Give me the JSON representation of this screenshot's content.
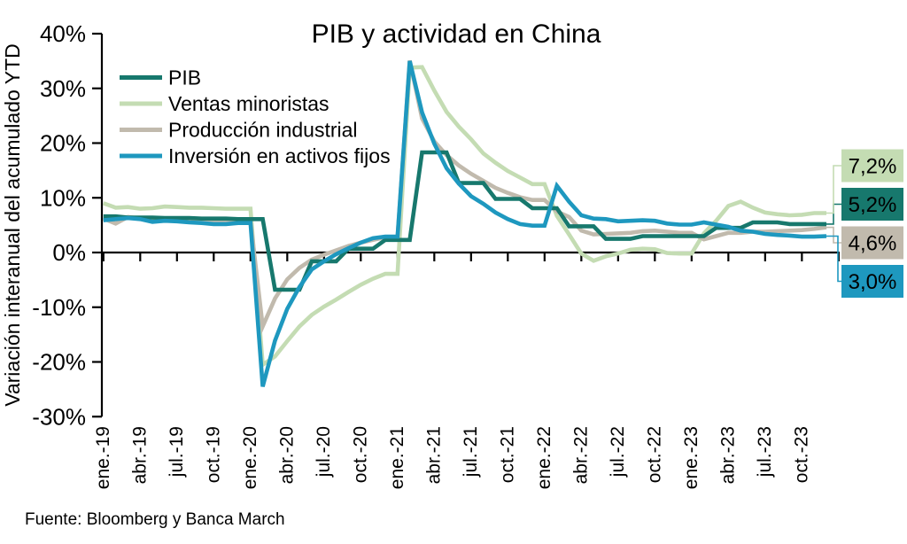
{
  "source": "Fuente: Bloomberg y Banca March",
  "chart_data": {
    "type": "line",
    "title": "PIB y actividad en China",
    "ylabel": "Variación interanual del acumulado YTD",
    "ylim": [
      -30,
      40
    ],
    "yticks": {
      "labels": [
        "40%",
        "30%",
        "20%",
        "10%",
        "0%",
        "-10%",
        "-20%",
        "-30%"
      ],
      "values": [
        40,
        30,
        20,
        10,
        0,
        -10,
        -20,
        -30
      ]
    },
    "x_frequency": "monthly",
    "categories": [
      "ene.-19",
      "feb.-19",
      "mar.-19",
      "abr.-19",
      "may.-19",
      "jun.-19",
      "jul.-19",
      "ago.-19",
      "sep.-19",
      "oct.-19",
      "nov.-19",
      "dic.-19",
      "ene.-20",
      "feb.-20",
      "mar.-20",
      "abr.-20",
      "may.-20",
      "jun.-20",
      "jul.-20",
      "ago.-20",
      "sep.-20",
      "oct.-20",
      "nov.-20",
      "dic.-20",
      "ene.-21",
      "feb.-21",
      "mar.-21",
      "abr.-21",
      "may.-21",
      "jun.-21",
      "jul.-21",
      "ago.-21",
      "sep.-21",
      "oct.-21",
      "nov.-21",
      "dic.-21",
      "ene.-22",
      "feb.-22",
      "mar.-22",
      "abr.-22",
      "may.-22",
      "jun.-22",
      "jul.-22",
      "ago.-22",
      "sep.-22",
      "oct.-22",
      "nov.-22",
      "dic.-22",
      "ene.-23",
      "feb.-23",
      "mar.-23",
      "abr.-23",
      "may.-23",
      "jun.-23",
      "jul.-23",
      "ago.-23",
      "sep.-23",
      "oct.-23",
      "nov.-23",
      "dic.-23"
    ],
    "xtick_labels": [
      "ene.-19",
      "abr.-19",
      "jul.-19",
      "oct.-19",
      "ene.-20",
      "abr.-20",
      "jul.-20",
      "oct.-20",
      "ene.-21",
      "abr.-21",
      "jul.-21",
      "oct.-21",
      "ene.-22",
      "abr.-22",
      "jul.-22",
      "oct.-22",
      "ene.-23",
      "abr.-23",
      "jul.-23",
      "oct.-23"
    ],
    "grid": false,
    "legend_position": "top-left",
    "series": [
      {
        "key": "pib",
        "name": "PIB",
        "color": "#17786d",
        "end_label": "5,2%",
        "end_label_text_color": "#ffffff",
        "values": [
          6.6,
          6.6,
          6.4,
          6.4,
          6.4,
          6.3,
          6.3,
          6.3,
          6.2,
          6.2,
          6.2,
          6.1,
          6.1,
          6.1,
          -6.8,
          -6.8,
          -6.8,
          -1.6,
          -1.6,
          -1.6,
          0.7,
          0.7,
          0.7,
          2.3,
          2.3,
          2.3,
          18.3,
          18.3,
          18.3,
          12.7,
          12.7,
          12.7,
          9.8,
          9.8,
          9.8,
          8.1,
          8.1,
          8.1,
          4.8,
          4.8,
          4.8,
          2.5,
          2.5,
          2.5,
          3.0,
          3.0,
          3.0,
          3.0,
          3.0,
          3.0,
          4.5,
          4.5,
          4.5,
          5.5,
          5.5,
          5.5,
          5.2,
          5.2,
          5.2,
          5.2
        ]
      },
      {
        "key": "ventas-minoristas",
        "name": "Ventas minoristas",
        "color": "#c4dcb3",
        "end_label": "7,2%",
        "end_label_text_color": "#1a1a1a",
        "values": [
          9.0,
          8.2,
          8.3,
          8.0,
          8.1,
          8.4,
          8.3,
          8.2,
          8.2,
          8.1,
          8.0,
          8.0,
          8.0,
          -20.5,
          -19.0,
          -16.2,
          -13.5,
          -11.4,
          -9.9,
          -8.6,
          -7.2,
          -5.9,
          -4.8,
          -3.9,
          -3.9,
          33.8,
          33.9,
          29.6,
          25.7,
          23.0,
          20.7,
          18.1,
          16.4,
          14.9,
          13.7,
          12.5,
          12.5,
          6.7,
          3.3,
          -0.2,
          -1.5,
          -0.7,
          -0.2,
          0.5,
          0.7,
          0.6,
          -0.1,
          -0.2,
          -0.2,
          3.5,
          5.8,
          8.5,
          9.3,
          8.2,
          7.3,
          7.0,
          6.8,
          6.9,
          7.2,
          7.2
        ]
      },
      {
        "key": "produccion-industrial",
        "name": "Producción industrial",
        "color": "#c1baad",
        "end_label": "4,6%",
        "end_label_text_color": "#1a1a1a",
        "values": [
          6.2,
          5.3,
          6.5,
          6.2,
          6.0,
          6.0,
          5.8,
          5.6,
          5.6,
          5.6,
          5.6,
          5.7,
          5.7,
          -13.5,
          -8.4,
          -4.9,
          -2.8,
          -1.3,
          -0.4,
          0.4,
          1.2,
          1.8,
          2.3,
          2.8,
          2.8,
          35.1,
          24.5,
          20.3,
          17.8,
          15.9,
          14.4,
          13.1,
          11.8,
          10.9,
          10.1,
          9.6,
          9.6,
          7.5,
          6.5,
          4.0,
          3.3,
          3.4,
          3.5,
          3.6,
          3.9,
          4.0,
          3.8,
          3.6,
          3.6,
          2.4,
          3.0,
          3.6,
          3.6,
          3.8,
          3.8,
          3.9,
          4.0,
          4.1,
          4.3,
          4.6
        ]
      },
      {
        "key": "inversion-activos-fijos",
        "name": "Inversión en activos fijos",
        "color": "#1e98bf",
        "end_label": "3,0%",
        "end_label_text_color": "#ffffff",
        "values": [
          5.9,
          6.1,
          6.3,
          6.1,
          5.6,
          5.8,
          5.7,
          5.5,
          5.4,
          5.2,
          5.2,
          5.4,
          5.4,
          -24.5,
          -16.1,
          -10.3,
          -6.3,
          -3.1,
          -1.6,
          -0.3,
          0.8,
          1.8,
          2.6,
          2.9,
          2.9,
          35.0,
          25.6,
          19.9,
          15.4,
          12.6,
          10.3,
          8.9,
          7.3,
          6.1,
          5.2,
          4.9,
          4.9,
          12.2,
          9.3,
          6.8,
          6.2,
          6.1,
          5.7,
          5.8,
          5.9,
          5.8,
          5.3,
          5.1,
          5.1,
          5.5,
          5.1,
          4.7,
          4.0,
          3.8,
          3.4,
          3.2,
          3.1,
          2.9,
          2.9,
          3.0
        ]
      }
    ]
  }
}
